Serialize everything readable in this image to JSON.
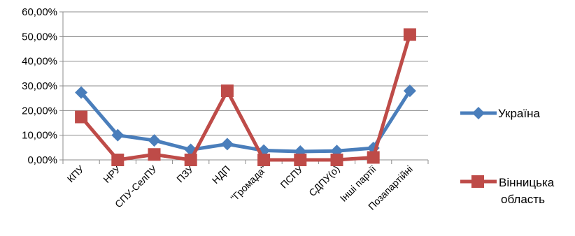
{
  "chart_data": {
    "type": "line",
    "title": "",
    "xlabel": "",
    "ylabel": "",
    "categories": [
      "КПУ",
      "НРУ",
      "СПУ-СелПУ",
      "ПЗУ",
      "НДП",
      "\"Громада\"",
      "ПСПУ",
      "СДПУ(о)",
      "Інші партії",
      "Позапартійні"
    ],
    "ylim": [
      0,
      60
    ],
    "y_ticks": [
      "0,00%",
      "10,00%",
      "20,00%",
      "30,00%",
      "40,00%",
      "50,00%",
      "60,00%"
    ],
    "grid": true,
    "legend_position": "right",
    "series": [
      {
        "name": "Україна",
        "color": "#4a7ebb",
        "marker": "diamond",
        "values": [
          27.3,
          10.0,
          7.9,
          4.1,
          6.4,
          3.8,
          3.4,
          3.6,
          4.8,
          28.0
        ]
      },
      {
        "name": "Вінницька область",
        "name_lines": [
          "Вінницька",
          "область"
        ],
        "color": "#be4b48",
        "marker": "square",
        "values": [
          17.4,
          0.0,
          2.2,
          0.0,
          28.0,
          0.0,
          0.0,
          0.0,
          1.0,
          50.8
        ]
      }
    ]
  }
}
